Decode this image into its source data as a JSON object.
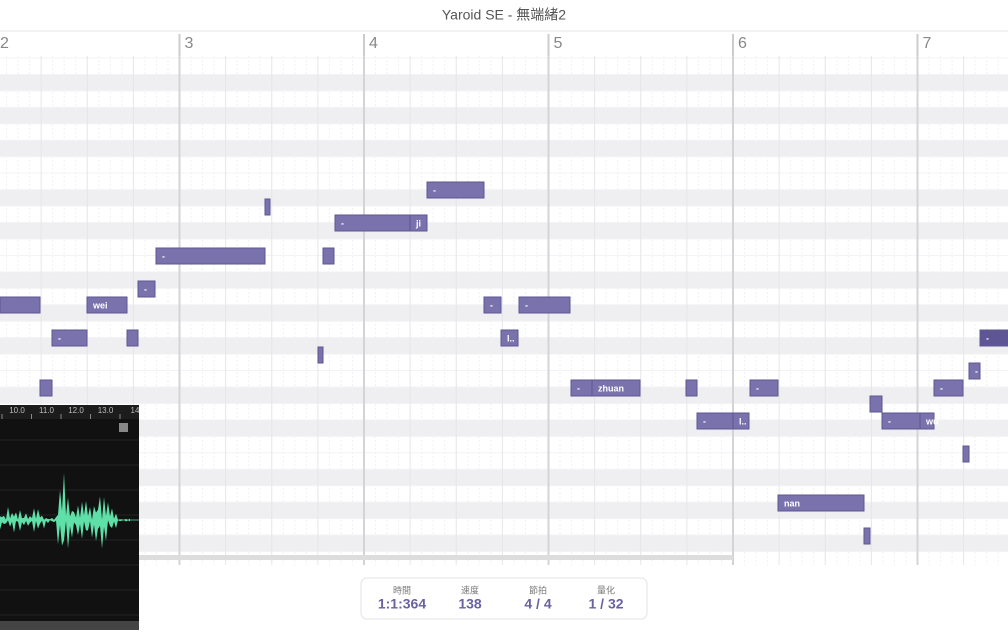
{
  "header": {
    "title": "Yaroid SE - 無端緒2"
  },
  "bars": [
    "2",
    "3",
    "4",
    "5",
    "6",
    "7"
  ],
  "lyrics": [
    "-",
    "-",
    "ji",
    "-",
    "-",
    "wei",
    "-",
    "-",
    "-",
    "l..",
    "-",
    "-",
    "-",
    "zhuan",
    "-",
    "-",
    "-",
    "l..",
    "-",
    "wu",
    "nan"
  ],
  "waveform": {
    "ticks": [
      "10.0",
      "11.0",
      "12.0",
      "13.0",
      "14"
    ]
  },
  "status": [
    {
      "label": "時間",
      "value": "1:1:364"
    },
    {
      "label": "速度",
      "value": "138"
    },
    {
      "label": "節拍",
      "value": "4 / 4"
    },
    {
      "label": "量化",
      "value": "1 / 32"
    }
  ]
}
